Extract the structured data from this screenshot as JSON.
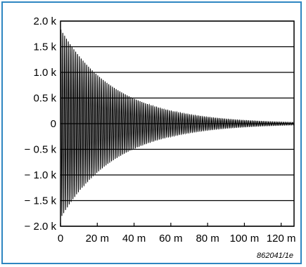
{
  "chart_data": {
    "type": "line",
    "title": "",
    "xlabel": "",
    "ylabel": "",
    "xlim": [
      0,
      0.127
    ],
    "ylim": [
      -2000,
      2000
    ],
    "x_ticks": [
      {
        "value": 0,
        "label": "0"
      },
      {
        "value": 0.02,
        "label": "20 m"
      },
      {
        "value": 0.04,
        "label": "40 m"
      },
      {
        "value": 0.06,
        "label": "60 m"
      },
      {
        "value": 0.08,
        "label": "80 m"
      },
      {
        "value": 0.1,
        "label": "100 m"
      },
      {
        "value": 0.12,
        "label": "120 m"
      }
    ],
    "y_ticks": [
      {
        "value": 2000,
        "label": "2.0 k"
      },
      {
        "value": 1500,
        "label": "1.5 k"
      },
      {
        "value": 1000,
        "label": "1.0 k"
      },
      {
        "value": 500,
        "label": "0.5 k"
      },
      {
        "value": 0,
        "label": "0"
      },
      {
        "value": -500,
        "label": "− 0.5 k"
      },
      {
        "value": -1000,
        "label": "− 1.0 k"
      },
      {
        "value": -1500,
        "label": "− 1.5 k"
      },
      {
        "value": -2000,
        "label": "− 2.0 k"
      }
    ],
    "grid": {
      "horizontal": true,
      "vertical": false
    },
    "series": [
      {
        "type": "damped-sine",
        "amplitude": 1850,
        "frequency_hz": 1000,
        "decay_time_constant_s": 0.03,
        "t_start": 0,
        "t_end": 0.127,
        "color": "#000000"
      }
    ]
  },
  "figure_ref": "862041/1e",
  "colors": {
    "frame": "#2e86c1",
    "grid": "#000000",
    "trace": "#000000"
  }
}
